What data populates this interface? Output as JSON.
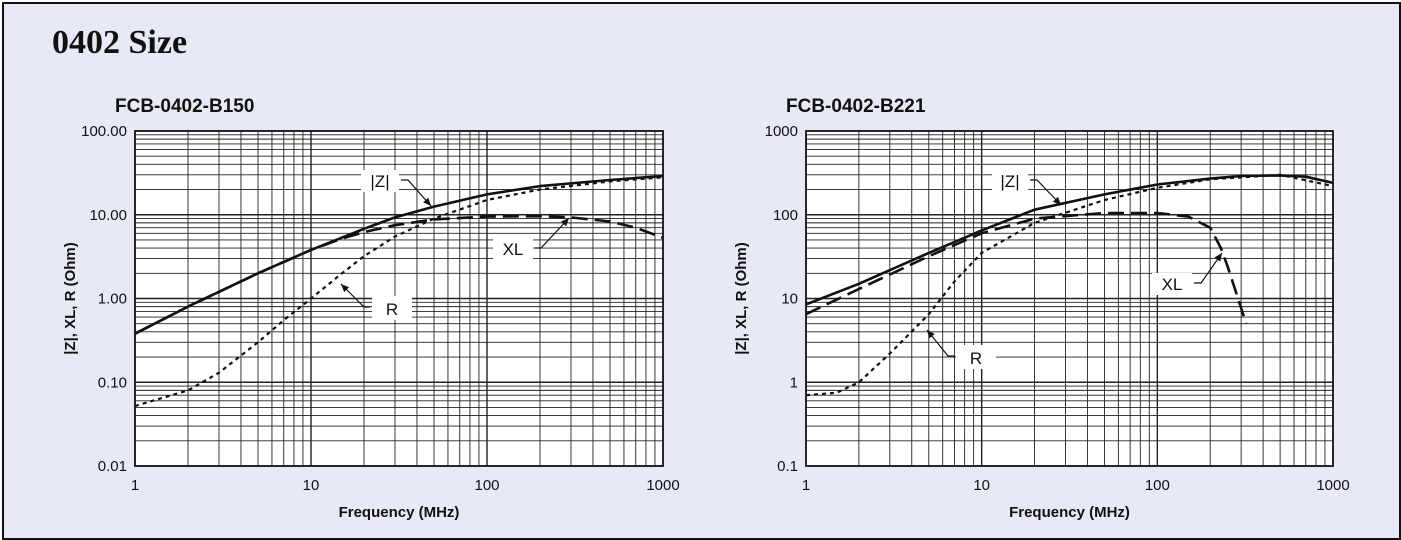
{
  "section_title": "0402 Size",
  "chart_data": [
    {
      "type": "line",
      "title": "FCB-0402-B150",
      "xlabel": "Frequency (MHz)",
      "ylabel": "|Z|, XL, R (Ohm)",
      "xscale": "log",
      "yscale": "log",
      "xlim": [
        1,
        1000
      ],
      "ylim": [
        0.01,
        100
      ],
      "x_ticks": [
        "1",
        "10",
        "100",
        "1000"
      ],
      "y_ticks": [
        "0.01",
        "0.10",
        "1.00",
        "10.00",
        "100.00"
      ],
      "grid": true,
      "series": [
        {
          "name": "|Z|",
          "style": "solid",
          "x": [
            1,
            2,
            5,
            10,
            20,
            30,
            50,
            100,
            200,
            500,
            1000
          ],
          "values": [
            0.38,
            0.8,
            2.0,
            3.8,
            6.8,
            9.3,
            12.5,
            17.5,
            22,
            26,
            29
          ]
        },
        {
          "name": "XL",
          "style": "dashed",
          "x": [
            1,
            2,
            5,
            10,
            15,
            20,
            30,
            50,
            100,
            200,
            300,
            500,
            700,
            1000
          ],
          "values": [
            0.38,
            0.8,
            2.0,
            3.8,
            5.2,
            6.2,
            7.5,
            8.8,
            9.5,
            9.6,
            9.3,
            8.3,
            7.0,
            5.3
          ]
        },
        {
          "name": "R",
          "style": "dotted",
          "x": [
            1,
            2,
            3,
            5,
            7,
            10,
            15,
            20,
            30,
            50,
            100,
            200,
            500,
            1000
          ],
          "values": [
            0.052,
            0.08,
            0.13,
            0.3,
            0.55,
            1.0,
            2.0,
            3.2,
            5.5,
            9.0,
            15,
            20,
            25,
            28
          ]
        }
      ],
      "annotations": [
        "|Z|",
        "XL",
        "R"
      ]
    },
    {
      "type": "line",
      "title": "FCB-0402-B221",
      "xlabel": "Frequency (MHz)",
      "ylabel": "|Z|, XL, R (Ohm)",
      "xscale": "log",
      "yscale": "log",
      "xlim": [
        1,
        1000
      ],
      "ylim": [
        0.1,
        1000
      ],
      "x_ticks": [
        "1",
        "10",
        "100",
        "1000"
      ],
      "y_ticks": [
        "0.1",
        "1",
        "10",
        "100",
        "1000"
      ],
      "grid": true,
      "series": [
        {
          "name": "|Z|",
          "style": "solid",
          "x": [
            1,
            2,
            5,
            10,
            20,
            50,
            100,
            200,
            300,
            500,
            700,
            1000
          ],
          "values": [
            8.5,
            15,
            35,
            65,
            115,
            175,
            230,
            270,
            290,
            295,
            285,
            240
          ]
        },
        {
          "name": "XL",
          "style": "dashed",
          "x": [
            1,
            2,
            5,
            10,
            20,
            50,
            100,
            150,
            200,
            230,
            250,
            280,
            320
          ],
          "values": [
            6.5,
            13,
            32,
            60,
            90,
            105,
            105,
            95,
            70,
            40,
            25,
            12,
            5
          ]
        },
        {
          "name": "R",
          "style": "dotted",
          "x": [
            1,
            1.5,
            2,
            3,
            5,
            7,
            10,
            20,
            50,
            100,
            200,
            500,
            1000
          ],
          "values": [
            0.7,
            0.75,
            1.0,
            2.2,
            6.5,
            16,
            35,
            80,
            150,
            210,
            265,
            300,
            220
          ]
        }
      ],
      "annotations": [
        "|Z|",
        "XL",
        "R"
      ]
    }
  ]
}
